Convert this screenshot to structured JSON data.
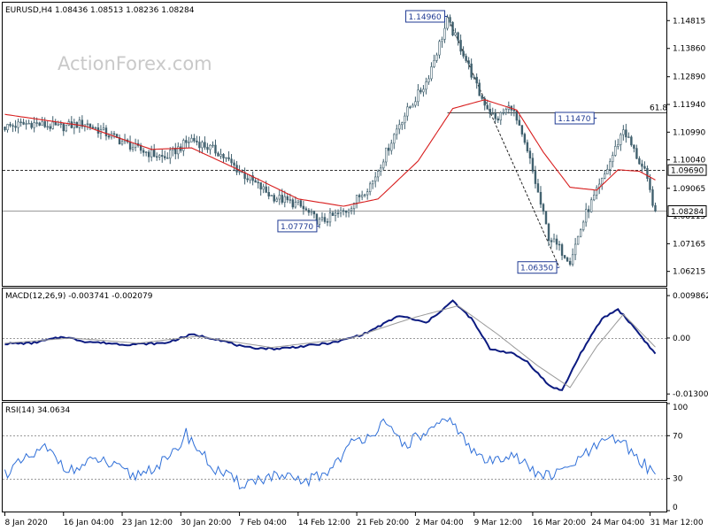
{
  "window_header": "EURUSD,H4  1.08436 1.08513 1.08236 1.08284",
  "watermark": "ActionForex.com",
  "colors": {
    "candles": "#3f5f6d",
    "ma": "#d81e1e",
    "macd_main": "#0b1a80",
    "macd_signal": "#9a9a9a",
    "rsi": "#2f6fd8",
    "callout": "#1f3a93",
    "fib": "#444444"
  },
  "chart_data": [
    {
      "type": "line",
      "subtype": "candlestick",
      "title": "EURUSD,H4  1.08436 1.08513 1.08236 1.08284",
      "ylim": [
        1.0575,
        1.154
      ],
      "y_ticks": [
        "1.14815",
        "1.13860",
        "1.12890",
        "1.11940",
        "1.10990",
        "1.10040",
        "1.09065",
        "1.08115",
        "1.07165",
        "1.06215"
      ],
      "y_tick_values": [
        1.14815,
        1.1386,
        1.1289,
        1.1194,
        1.1099,
        1.1004,
        1.09065,
        1.08115,
        1.07165,
        1.06215
      ],
      "price_anchors": [
        {
          "t": 0,
          "v": 1.1117
        },
        {
          "t": 10,
          "v": 1.113
        },
        {
          "t": 20,
          "v": 1.1115
        },
        {
          "t": 30,
          "v": 1.113
        },
        {
          "t": 40,
          "v": 1.1085
        },
        {
          "t": 50,
          "v": 1.104
        },
        {
          "t": 60,
          "v": 1.101
        },
        {
          "t": 70,
          "v": 1.1075
        },
        {
          "t": 80,
          "v": 1.103
        },
        {
          "t": 90,
          "v": 1.095
        },
        {
          "t": 100,
          "v": 1.088
        },
        {
          "t": 110,
          "v": 1.085
        },
        {
          "t": 118,
          "v": 1.079
        },
        {
          "t": 128,
          "v": 1.083
        },
        {
          "t": 138,
          "v": 1.093
        },
        {
          "t": 148,
          "v": 1.113
        },
        {
          "t": 158,
          "v": 1.127
        },
        {
          "t": 166,
          "v": 1.148
        },
        {
          "t": 172,
          "v": 1.137
        },
        {
          "t": 178,
          "v": 1.123
        },
        {
          "t": 184,
          "v": 1.114
        },
        {
          "t": 190,
          "v": 1.119
        },
        {
          "t": 197,
          "v": 1.1
        },
        {
          "t": 204,
          "v": 1.074
        },
        {
          "t": 212,
          "v": 1.066
        },
        {
          "t": 218,
          "v": 1.082
        },
        {
          "t": 224,
          "v": 1.093
        },
        {
          "t": 232,
          "v": 1.111
        },
        {
          "t": 240,
          "v": 1.096
        },
        {
          "t": 244,
          "v": 1.0828
        }
      ],
      "ma_anchors": [
        {
          "t": 0,
          "v": 1.116
        },
        {
          "t": 30,
          "v": 1.112
        },
        {
          "t": 55,
          "v": 1.104
        },
        {
          "t": 70,
          "v": 1.1045
        },
        {
          "t": 90,
          "v": 1.096
        },
        {
          "t": 110,
          "v": 1.087
        },
        {
          "t": 127,
          "v": 1.0845
        },
        {
          "t": 140,
          "v": 1.087
        },
        {
          "t": 155,
          "v": 1.1
        },
        {
          "t": 168,
          "v": 1.118
        },
        {
          "t": 180,
          "v": 1.121
        },
        {
          "t": 192,
          "v": 1.1175
        },
        {
          "t": 202,
          "v": 1.103
        },
        {
          "t": 212,
          "v": 1.091
        },
        {
          "t": 222,
          "v": 1.09
        },
        {
          "t": 230,
          "v": 1.097
        },
        {
          "t": 238,
          "v": 1.0965
        },
        {
          "t": 244,
          "v": 1.0935
        }
      ],
      "horizontal_lines": [
        {
          "value": 1.0969,
          "label": "1.09690",
          "style": "dashed"
        },
        {
          "value": 1.08284,
          "label": "1.08284",
          "style": "solid"
        }
      ],
      "fib_level": {
        "value": 1.1166,
        "label": "61.8"
      },
      "trendline": {
        "from": {
          "t": 166,
          "v": 1.1496
        },
        "to": {
          "t": 208,
          "v": 1.0635
        }
      },
      "annotations": [
        {
          "label": "1.14960",
          "t": 166,
          "v": 1.1496,
          "side": "left"
        },
        {
          "label": "1.11470",
          "t": 222,
          "v": 1.1147,
          "side": "left"
        },
        {
          "label": "1.07770",
          "t": 118,
          "v": 1.0777,
          "side": "left"
        },
        {
          "label": "1.06350",
          "t": 208,
          "v": 1.0635,
          "side": "left"
        }
      ]
    },
    {
      "type": "line",
      "title": "MACD(12,26,9) -0.003741 -0.002079",
      "ylim": [
        -0.0142,
        0.0113
      ],
      "y_ticks": [
        "0.009862",
        "0.00",
        "-0.013002"
      ],
      "y_tick_values": [
        0.009862,
        0.0,
        -0.013002
      ],
      "series": [
        {
          "name": "-0.003741",
          "role": "main",
          "anchors": [
            {
              "t": 0,
              "v": -0.0013
            },
            {
              "t": 10,
              "v": -0.0012
            },
            {
              "t": 22,
              "v": 0.0003
            },
            {
              "t": 30,
              "v": -0.0008
            },
            {
              "t": 45,
              "v": -0.0015
            },
            {
              "t": 60,
              "v": -0.0012
            },
            {
              "t": 70,
              "v": 0.0008
            },
            {
              "t": 80,
              "v": -0.0003
            },
            {
              "t": 90,
              "v": -0.0022
            },
            {
              "t": 102,
              "v": -0.0025
            },
            {
              "t": 112,
              "v": -0.0019
            },
            {
              "t": 124,
              "v": -0.001
            },
            {
              "t": 135,
              "v": 0.001
            },
            {
              "t": 148,
              "v": 0.0052
            },
            {
              "t": 158,
              "v": 0.0035
            },
            {
              "t": 168,
              "v": 0.0086
            },
            {
              "t": 175,
              "v": 0.0045
            },
            {
              "t": 182,
              "v": -0.0025
            },
            {
              "t": 190,
              "v": -0.0035
            },
            {
              "t": 196,
              "v": -0.0055
            },
            {
              "t": 204,
              "v": -0.011
            },
            {
              "t": 209,
              "v": -0.0122
            },
            {
              "t": 216,
              "v": -0.0035
            },
            {
              "t": 224,
              "v": 0.0045
            },
            {
              "t": 230,
              "v": 0.0067
            },
            {
              "t": 236,
              "v": 0.0025
            },
            {
              "t": 244,
              "v": -0.0037
            }
          ]
        },
        {
          "name": "-0.002079",
          "role": "signal",
          "anchors": [
            {
              "t": 0,
              "v": -0.0012
            },
            {
              "t": 25,
              "v": 0.0
            },
            {
              "t": 50,
              "v": -0.0012
            },
            {
              "t": 72,
              "v": 0.0004
            },
            {
              "t": 100,
              "v": -0.0022
            },
            {
              "t": 130,
              "v": 0.0
            },
            {
              "t": 152,
              "v": 0.0045
            },
            {
              "t": 170,
              "v": 0.0075
            },
            {
              "t": 185,
              "v": 0.0008
            },
            {
              "t": 200,
              "v": -0.0065
            },
            {
              "t": 212,
              "v": -0.0115
            },
            {
              "t": 222,
              "v": -0.002
            },
            {
              "t": 232,
              "v": 0.0055
            },
            {
              "t": 244,
              "v": -0.0021
            }
          ]
        }
      ]
    },
    {
      "type": "line",
      "title": "RSI(14) 34.0634",
      "ylim": [
        0,
        100
      ],
      "y_ticks": [
        "100",
        "70",
        "30",
        "0"
      ],
      "y_tick_values": [
        100,
        70,
        30,
        0
      ],
      "levels": [
        70,
        30
      ],
      "series": [
        {
          "name": "34.0634",
          "anchors": [
            {
              "t": 0,
              "v": 35
            },
            {
              "t": 15,
              "v": 58
            },
            {
              "t": 25,
              "v": 37
            },
            {
              "t": 35,
              "v": 48
            },
            {
              "t": 48,
              "v": 32
            },
            {
              "t": 62,
              "v": 48
            },
            {
              "t": 68,
              "v": 72
            },
            {
              "t": 78,
              "v": 40
            },
            {
              "t": 88,
              "v": 25
            },
            {
              "t": 100,
              "v": 32
            },
            {
              "t": 112,
              "v": 27
            },
            {
              "t": 120,
              "v": 34
            },
            {
              "t": 130,
              "v": 62
            },
            {
              "t": 142,
              "v": 80
            },
            {
              "t": 150,
              "v": 62
            },
            {
              "t": 160,
              "v": 75
            },
            {
              "t": 168,
              "v": 85
            },
            {
              "t": 174,
              "v": 58
            },
            {
              "t": 182,
              "v": 45
            },
            {
              "t": 190,
              "v": 55
            },
            {
              "t": 198,
              "v": 36
            },
            {
              "t": 206,
              "v": 32
            },
            {
              "t": 214,
              "v": 45
            },
            {
              "t": 222,
              "v": 60
            },
            {
              "t": 230,
              "v": 68
            },
            {
              "t": 236,
              "v": 52
            },
            {
              "t": 244,
              "v": 34
            }
          ]
        }
      ]
    }
  ],
  "x_axis": {
    "ticks": [
      "8 Jan 2020",
      "16 Jan 04:00",
      "23 Jan 12:00",
      "30 Jan 20:00",
      "7 Feb 04:00",
      "14 Feb 12:00",
      "21 Feb 20:00",
      "2 Mar 04:00",
      "9 Mar 12:00",
      "16 Mar 20:00",
      "24 Mar 04:00",
      "31 Mar 12:00"
    ],
    "tick_bars": [
      0,
      22,
      44,
      66,
      88,
      110,
      132,
      154,
      176,
      198,
      220,
      242
    ],
    "bar_count": 245
  }
}
